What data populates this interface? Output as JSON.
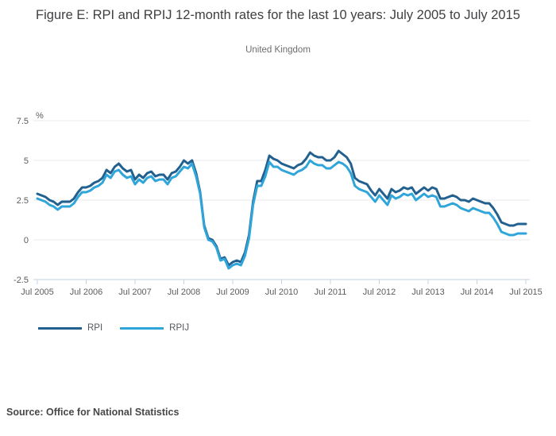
{
  "title": "Figure E: RPI and RPIJ 12-month rates for the last 10 years: July 2005 to July 2015",
  "subtitle": "United Kingdom",
  "source": "Source: Office for National Statistics",
  "colors": {
    "rpi_line": "#22618f",
    "rpij_line": "#30a5da",
    "gridline": "#e9e9e9",
    "axis_line": "#c6d3e0",
    "axis_text": "#5c5c5c"
  },
  "chart_data": {
    "type": "line",
    "title": "Figure E: RPI and RPIJ 12-month rates for the last 10 years: July 2005 to July 2015",
    "subtitle": "United Kingdom",
    "ylabel": "%",
    "y_unit": "%",
    "ylim": [
      -2.5,
      7.5
    ],
    "grid": true,
    "legend_position": "bottom-left",
    "y_ticks": [
      7.5,
      5,
      2.5,
      0,
      -2.5
    ],
    "y_tick_labels": [
      "7.5",
      "5",
      "2.5",
      "0",
      "-2.5"
    ],
    "x_tick_labels": [
      "Jul 2005",
      "Jul 2006",
      "Jul 2007",
      "Jul 2008",
      "Jul 2009",
      "Jul 2010",
      "Jul 2011",
      "Jul 2012",
      "Jul 2013",
      "Jul 2014",
      "Jul 2015"
    ],
    "x_start_month": "Jul 2005",
    "x_end_month": "Jul 2015",
    "x_step_months": 1,
    "series": [
      {
        "name": "RPI",
        "color": "#22618f",
        "values": [
          2.9,
          2.8,
          2.7,
          2.5,
          2.4,
          2.2,
          2.4,
          2.4,
          2.4,
          2.6,
          3.0,
          3.3,
          3.3,
          3.4,
          3.6,
          3.7,
          3.9,
          4.4,
          4.2,
          4.6,
          4.8,
          4.5,
          4.3,
          4.4,
          3.8,
          4.1,
          3.9,
          4.2,
          4.3,
          4.0,
          4.1,
          4.1,
          3.8,
          4.2,
          4.3,
          4.6,
          5.0,
          4.8,
          5.0,
          4.2,
          3.0,
          0.9,
          0.1,
          0.0,
          -0.4,
          -1.2,
          -1.1,
          -1.6,
          -1.4,
          -1.3,
          -1.4,
          -0.8,
          0.3,
          2.4,
          3.7,
          3.7,
          4.4,
          5.3,
          5.1,
          5.0,
          4.8,
          4.7,
          4.6,
          4.5,
          4.7,
          4.8,
          5.1,
          5.5,
          5.3,
          5.2,
          5.2,
          5.0,
          5.0,
          5.2,
          5.6,
          5.4,
          5.2,
          4.8,
          3.9,
          3.7,
          3.6,
          3.5,
          3.1,
          2.8,
          3.2,
          2.9,
          2.6,
          3.2,
          3.0,
          3.1,
          3.3,
          3.2,
          3.3,
          2.9,
          3.1,
          3.3,
          3.1,
          3.3,
          3.2,
          2.6,
          2.6,
          2.7,
          2.8,
          2.7,
          2.5,
          2.5,
          2.4,
          2.6,
          2.5,
          2.4,
          2.3,
          2.3,
          2.0,
          1.6,
          1.1,
          1.0,
          0.9,
          0.9,
          1.0,
          1.0,
          1.0
        ]
      },
      {
        "name": "RPIJ",
        "color": "#30a5da",
        "values": [
          2.6,
          2.5,
          2.4,
          2.2,
          2.1,
          1.9,
          2.1,
          2.1,
          2.1,
          2.3,
          2.7,
          3.0,
          3.0,
          3.1,
          3.3,
          3.4,
          3.6,
          4.1,
          3.9,
          4.3,
          4.4,
          4.1,
          3.9,
          4.0,
          3.5,
          3.8,
          3.6,
          3.9,
          4.0,
          3.7,
          3.8,
          3.8,
          3.5,
          3.9,
          4.0,
          4.3,
          4.6,
          4.5,
          4.8,
          4.0,
          2.9,
          0.8,
          0.0,
          -0.1,
          -0.5,
          -1.3,
          -1.2,
          -1.8,
          -1.6,
          -1.5,
          -1.6,
          -1.0,
          0.1,
          2.2,
          3.4,
          3.4,
          4.0,
          4.9,
          4.6,
          4.6,
          4.4,
          4.3,
          4.2,
          4.1,
          4.3,
          4.4,
          4.6,
          5.0,
          4.8,
          4.7,
          4.7,
          4.5,
          4.5,
          4.7,
          4.9,
          4.8,
          4.6,
          4.2,
          3.4,
          3.2,
          3.1,
          3.0,
          2.7,
          2.4,
          2.8,
          2.5,
          2.2,
          2.8,
          2.6,
          2.7,
          2.9,
          2.8,
          2.9,
          2.5,
          2.7,
          2.9,
          2.7,
          2.8,
          2.7,
          2.1,
          2.1,
          2.2,
          2.3,
          2.2,
          2.0,
          1.9,
          1.8,
          2.0,
          1.9,
          1.8,
          1.7,
          1.7,
          1.4,
          1.0,
          0.5,
          0.4,
          0.3,
          0.3,
          0.4,
          0.4,
          0.4
        ]
      }
    ]
  }
}
